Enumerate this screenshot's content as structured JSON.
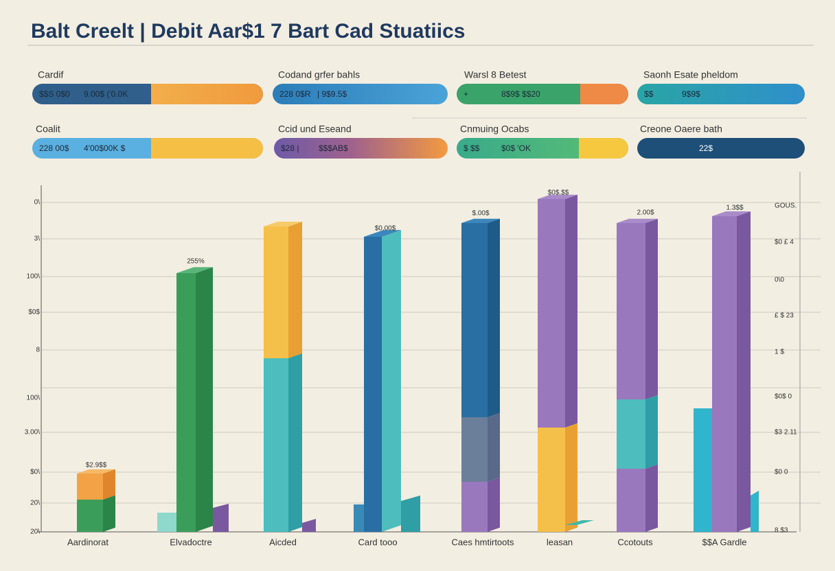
{
  "header": {
    "title": "Balt Creelt | Debit Aar$1 7 Bart Cad Stuatiics"
  },
  "pills": [
    {
      "label": "Cardif",
      "left": "$$S 0$0",
      "right": "9.00$ ('0.0K"
    },
    {
      "label": "Codand grfer bahls",
      "left": "228 0$R",
      "right": "| 9$9.5$"
    },
    {
      "label": "Warsl 8 Betest",
      "left": "+",
      "right": "8$9$ $$20"
    },
    {
      "label": "Saonh Esate pheldom",
      "left": "$$",
      "right": "9$9$"
    },
    {
      "label": "Coalit",
      "left": "228 00$",
      "right": "4'00$00K $"
    },
    {
      "label": "Ccid und Eseand",
      "left": "$28 |",
      "right": "$$$AB$"
    },
    {
      "label": "Cnmuing Ocabs",
      "left": "$ $$",
      "right": "$0$ 'OK"
    },
    {
      "label": "Creone Oaere bath",
      "left": "",
      "right": "22$"
    }
  ],
  "chart": {
    "left_labels": [
      "0\\",
      "3\\",
      "100\\",
      "$0$",
      "8",
      "100\\",
      "3.00\\",
      "$0\\",
      "20\\",
      "20\\"
    ],
    "right_labels": [
      "GOUS.",
      "$0 £  4",
      "0\\0",
      "£ $  23",
      "1 $",
      "$0$  0",
      "$3  2.11",
      "$0 0",
      "8 $3"
    ],
    "bar_labels": [
      "$2.9$$",
      "255%",
      "$0.00$",
      "$.00$",
      "$0$.$$",
      "2.00$",
      "1.3$$"
    ],
    "categories": [
      "Aardinorat",
      "Elvadoctre",
      "Aicded",
      "Card tooo",
      "Caes hmtirtoots",
      "leasan",
      "Ccotouts",
      "$$A Gardle"
    ]
  }
}
